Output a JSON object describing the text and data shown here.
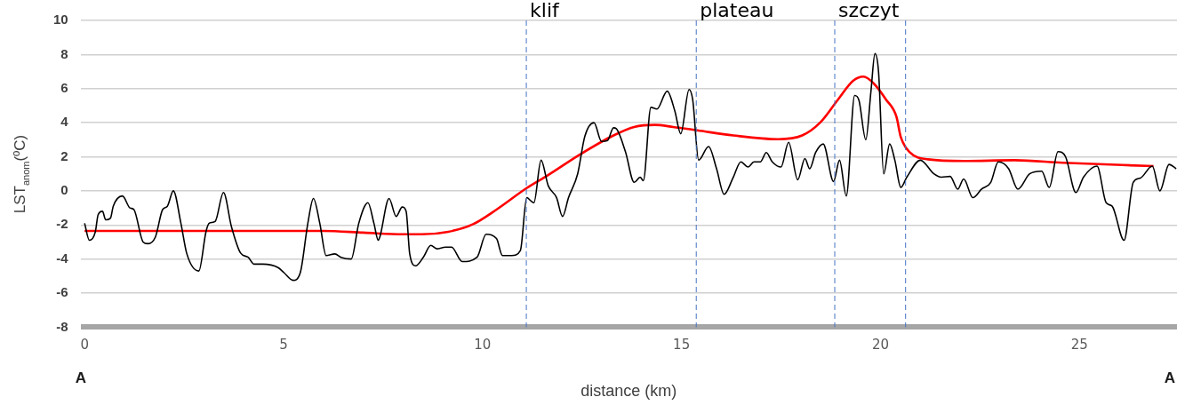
{
  "chart_data": {
    "type": "line",
    "xlabel": "distance (km)",
    "ylabel": "LST$_{anom}$(ºC)",
    "xlim": [
      -0.1,
      27.45
    ],
    "xticks": [
      0,
      5,
      10,
      15,
      20,
      25
    ],
    "ylim": [
      -8,
      10
    ],
    "yticks": [
      -8,
      -6,
      -4,
      -2,
      0,
      2,
      4,
      6,
      8,
      10
    ],
    "grid": "y",
    "legend": false,
    "marker": "none",
    "line_style": "solid",
    "series": [
      {
        "color": "#000000",
        "x": [
          0,
          0.12,
          0.27,
          0.34,
          0.45,
          0.53,
          0.65,
          0.72,
          0.95,
          1.14,
          1.24,
          1.47,
          1.59,
          1.78,
          1.96,
          2.08,
          2.23,
          2.42,
          2.57,
          2.87,
          3.05,
          3.13,
          3.28,
          3.49,
          3.69,
          3.92,
          4.11,
          4.26,
          4.48,
          4.86,
          5.01,
          5.24,
          5.42,
          5.61,
          5.75,
          5.91,
          6.07,
          6.29,
          6.44,
          6.7,
          6.89,
          7.12,
          7.27,
          7.38,
          7.42,
          7.65,
          7.83,
          7.98,
          8.08,
          8.17,
          8.32,
          8.51,
          8.7,
          8.85,
          9.07,
          9.22,
          9.49,
          9.86,
          10.09,
          10.35,
          10.5,
          10.73,
          10.95,
          11.11,
          11.22,
          11.29,
          11.47,
          11.65,
          11.86,
          12.01,
          12.16,
          12.39,
          12.57,
          12.8,
          12.99,
          13.14,
          13.29,
          13.36,
          13.59,
          13.81,
          13.96,
          14.04,
          14.23,
          14.38,
          14.64,
          14.83,
          14.98,
          15.19,
          15.28,
          15.43,
          15.68,
          15.88,
          16.07,
          16.3,
          16.49,
          16.67,
          16.82,
          16.98,
          17.13,
          17.28,
          17.5,
          17.69,
          17.92,
          18.1,
          18.22,
          18.37,
          18.56,
          18.82,
          18.97,
          19.14,
          19.35,
          19.46,
          19.63,
          19.76,
          19.86,
          19.95,
          20.08,
          20.23,
          20.36,
          20.51,
          20.66,
          21.0,
          21.34,
          21.53,
          21.75,
          21.94,
          22.09,
          22.32,
          22.54,
          22.77,
          22.96,
          23.22,
          23.45,
          23.75,
          24.05,
          24.24,
          24.46,
          24.65,
          24.91,
          25.1,
          25.44,
          25.67,
          25.82,
          26.12,
          26.35,
          26.53,
          26.83,
          27.02,
          27.25,
          27.43
        ],
        "values": [
          -1.9,
          -2.9,
          -2.4,
          -1.4,
          -1.2,
          -1.7,
          -1.6,
          -0.9,
          -0.3,
          -1.0,
          -1.1,
          -3.0,
          -3.1,
          -2.7,
          -1.1,
          -0.9,
          0.0,
          -1.9,
          -3.7,
          -4.7,
          -2.4,
          -1.9,
          -1.8,
          -0.1,
          -2.1,
          -3.65,
          -3.9,
          -4.3,
          -4.3,
          -4.5,
          -4.8,
          -5.25,
          -4.8,
          -1.9,
          -0.45,
          -1.9,
          -3.8,
          -3.7,
          -3.9,
          -4.0,
          -1.9,
          -0.7,
          -1.9,
          -2.9,
          -2.7,
          -0.45,
          -1.5,
          -0.95,
          -1.2,
          -3.7,
          -4.4,
          -3.9,
          -3.2,
          -3.4,
          -3.3,
          -3.3,
          -4.15,
          -3.9,
          -2.55,
          -2.8,
          -3.8,
          -3.8,
          -3.5,
          -0.4,
          -0.6,
          -0.7,
          1.8,
          0.3,
          -0.4,
          -1.5,
          -0.4,
          1.0,
          3.2,
          4.0,
          2.9,
          2.95,
          3.7,
          3.65,
          2.3,
          0.5,
          0.8,
          0.6,
          4.9,
          4.8,
          5.85,
          4.7,
          3.35,
          5.95,
          5.35,
          1.8,
          2.6,
          1.3,
          -0.2,
          0.8,
          1.7,
          1.4,
          1.7,
          1.7,
          2.25,
          1.7,
          1.4,
          2.85,
          0.65,
          1.9,
          1.3,
          2.25,
          2.75,
          0.55,
          1.8,
          -0.3,
          5.6,
          5.3,
          3.0,
          5.85,
          8.05,
          7.0,
          1.0,
          2.75,
          1.8,
          0.2,
          0.8,
          1.8,
          1.0,
          0.8,
          0.85,
          0.1,
          0.7,
          -0.4,
          0.1,
          0.5,
          1.7,
          1.3,
          0.1,
          1.0,
          1.15,
          0.2,
          2.3,
          2.0,
          -0.1,
          0.8,
          1.45,
          -0.7,
          -0.9,
          -2.9,
          0.5,
          0.75,
          1.45,
          0.0,
          1.55,
          1.3
        ]
      },
      {
        "color": "#ff0000",
        "x": [
          0,
          2,
          4,
          6,
          7,
          8.0,
          8.47,
          9.14,
          9.75,
          10.35,
          11.1,
          11.63,
          12.46,
          13.29,
          13.81,
          14.33,
          14.79,
          15.4,
          16.3,
          17.43,
          18.03,
          18.48,
          18.93,
          19.31,
          19.57,
          19.83,
          20.14,
          20.4,
          20.51,
          20.74,
          21.19,
          22.09,
          23.37,
          24.58,
          26.86
        ],
        "values": [
          -2.35,
          -2.35,
          -2.35,
          -2.35,
          -2.45,
          -2.55,
          -2.55,
          -2.4,
          -1.97,
          -1.1,
          0.15,
          0.9,
          2.15,
          3.25,
          3.75,
          3.87,
          3.75,
          3.55,
          3.25,
          3.03,
          3.25,
          4.0,
          5.35,
          6.45,
          6.7,
          6.3,
          5.35,
          4.35,
          3.15,
          2.25,
          1.85,
          1.75,
          1.8,
          1.65,
          1.45
        ]
      }
    ],
    "ref_lines": [
      {
        "axis": "x",
        "value": 11.1,
        "label": "klif",
        "color": "#4472c4",
        "line_style": "dashed"
      },
      {
        "axis": "x",
        "value": 15.37,
        "label": "plateau",
        "color": "#4472c4",
        "line_style": "dashed"
      },
      {
        "axis": "x",
        "value": 18.85,
        "label": "szczyt",
        "color": "#4472c4",
        "line_style": "dashed"
      },
      {
        "axis": "x",
        "value": 20.63,
        "color": "#4472c4",
        "line_style": "dashed"
      }
    ],
    "annotations": [
      "A",
      "A"
    ]
  }
}
